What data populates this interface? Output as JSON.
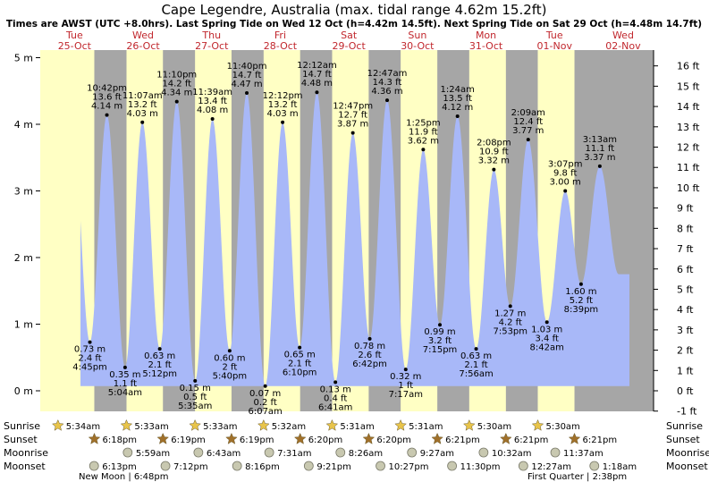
{
  "header": {
    "title": "Cape Legendre, Australia (max. tidal range 4.62m 15.2ft)",
    "subtitle": "Times are AWST (UTC +8.0hrs). Last Spring Tide on Wed 12 Oct (h=4.42m 14.5ft). Next Spring Tide on Sat 29 Oct (h=4.48m 14.7ft)"
  },
  "days": [
    {
      "name": "Tue",
      "date": "25-Oct"
    },
    {
      "name": "Wed",
      "date": "26-Oct"
    },
    {
      "name": "Thu",
      "date": "27-Oct"
    },
    {
      "name": "Fri",
      "date": "28-Oct"
    },
    {
      "name": "Sat",
      "date": "29-Oct"
    },
    {
      "name": "Sun",
      "date": "30-Oct"
    },
    {
      "name": "Mon",
      "date": "31-Oct"
    },
    {
      "name": "Tue",
      "date": "01-Nov"
    },
    {
      "name": "Wed",
      "date": "02-Nov"
    }
  ],
  "row_labels": {
    "sunrise": "Sunrise",
    "sunset": "Sunset",
    "moonrise": "Moonrise",
    "moonset": "Moonset"
  },
  "astro": {
    "sunrise": [
      "5:34am",
      "5:33am",
      "5:33am",
      "5:32am",
      "5:31am",
      "5:31am",
      "5:30am",
      "5:30am"
    ],
    "sunset": [
      "6:18pm",
      "6:19pm",
      "6:19pm",
      "6:20pm",
      "6:20pm",
      "6:21pm",
      "6:21pm",
      "6:21pm"
    ],
    "moonrise": [
      "5:59am",
      "6:43am",
      "7:31am",
      "8:26am",
      "9:27am",
      "10:32am",
      "11:37am"
    ],
    "moonset": [
      "6:13pm",
      "7:12pm",
      "8:16pm",
      "9:21pm",
      "10:27pm",
      "11:30pm",
      "12:27am",
      "1:18am"
    ]
  },
  "moon_phases": [
    "New Moon | 6:48pm",
    "First Quarter | 2:38pm"
  ],
  "colors": {
    "day": "#ffffc4",
    "night": "#a6a6a6",
    "tide": "#a8b8f8",
    "title_day": "#c1272d",
    "sun_icon": "#e8c44a",
    "sunset_icon": "#a0702a",
    "moon_icon": "#c8c8b0"
  },
  "chart_data": {
    "type": "area",
    "title": "Cape Legendre, Australia (max. tidal range 4.62m 15.2ft)",
    "x_unit": "time (AWST)",
    "y_label_left": "m",
    "y_label_right": "ft",
    "ylim_m": [
      -0.3,
      5.35
    ],
    "yticks_m": [
      "0 m",
      "1 m",
      "2 m",
      "3 m",
      "4 m",
      "5 m"
    ],
    "yticks_ft": [
      "-1 ft",
      "0 ft",
      "1 ft",
      "2 ft",
      "3 ft",
      "4 ft",
      "5 ft",
      "6 ft",
      "7 ft",
      "8 ft",
      "9 ft",
      "10 ft",
      "11 ft",
      "12 ft",
      "13 ft",
      "14 ft",
      "15 ft",
      "16 ft"
    ],
    "series": [
      {
        "points": [
          {
            "day": "Tue 25-Oct",
            "time": "4:45pm",
            "height_m": 0.73,
            "height_ft": 2.4,
            "type": "low"
          },
          {
            "day": "Tue 25-Oct",
            "time": "10:42pm",
            "height_m": 4.14,
            "height_ft": 13.6,
            "type": "high"
          },
          {
            "day": "Wed 26-Oct",
            "time": "5:04am",
            "height_m": 0.35,
            "height_ft": 1.1,
            "type": "low"
          },
          {
            "day": "Wed 26-Oct",
            "time": "11:07am",
            "height_m": 4.03,
            "height_ft": 13.2,
            "type": "high"
          },
          {
            "day": "Wed 26-Oct",
            "time": "5:12pm",
            "height_m": 0.63,
            "height_ft": 2.1,
            "type": "low"
          },
          {
            "day": "Wed 26-Oct",
            "time": "11:10pm",
            "height_m": 4.34,
            "height_ft": 14.2,
            "type": "high"
          },
          {
            "day": "Thu 27-Oct",
            "time": "5:35am",
            "height_m": 0.15,
            "height_ft": 0.5,
            "type": "low"
          },
          {
            "day": "Thu 27-Oct",
            "time": "11:39am",
            "height_m": 4.08,
            "height_ft": 13.4,
            "type": "high"
          },
          {
            "day": "Thu 27-Oct",
            "time": "5:40pm",
            "height_m": 0.6,
            "height_ft": 2.0,
            "type": "low"
          },
          {
            "day": "Thu 27-Oct",
            "time": "11:40pm",
            "height_m": 4.47,
            "height_ft": 14.7,
            "type": "high"
          },
          {
            "day": "Fri 28-Oct",
            "time": "6:07am",
            "height_m": 0.07,
            "height_ft": 0.2,
            "type": "low"
          },
          {
            "day": "Fri 28-Oct",
            "time": "12:12pm",
            "height_m": 4.03,
            "height_ft": 13.2,
            "type": "high"
          },
          {
            "day": "Fri 28-Oct",
            "time": "6:10pm",
            "height_m": 0.65,
            "height_ft": 2.1,
            "type": "low"
          },
          {
            "day": "Sat 29-Oct",
            "time": "12:12am",
            "height_m": 4.48,
            "height_ft": 14.7,
            "type": "high"
          },
          {
            "day": "Sat 29-Oct",
            "time": "6:41am",
            "height_m": 0.13,
            "height_ft": 0.4,
            "type": "low"
          },
          {
            "day": "Sat 29-Oct",
            "time": "12:47pm",
            "height_m": 3.87,
            "height_ft": 12.7,
            "type": "high"
          },
          {
            "day": "Sat 29-Oct",
            "time": "6:42pm",
            "height_m": 0.78,
            "height_ft": 2.6,
            "type": "low"
          },
          {
            "day": "Sun 30-Oct",
            "time": "12:47am",
            "height_m": 4.36,
            "height_ft": 14.3,
            "type": "high"
          },
          {
            "day": "Sun 30-Oct",
            "time": "7:17am",
            "height_m": 0.32,
            "height_ft": 1.0,
            "type": "low"
          },
          {
            "day": "Sun 30-Oct",
            "time": "1:25pm",
            "height_m": 3.62,
            "height_ft": 11.9,
            "type": "high"
          },
          {
            "day": "Sun 30-Oct",
            "time": "7:15pm",
            "height_m": 0.99,
            "height_ft": 3.2,
            "type": "low"
          },
          {
            "day": "Mon 31-Oct",
            "time": "1:24am",
            "height_m": 4.12,
            "height_ft": 13.5,
            "type": "high"
          },
          {
            "day": "Mon 31-Oct",
            "time": "7:56am",
            "height_m": 0.63,
            "height_ft": 2.1,
            "type": "low"
          },
          {
            "day": "Mon 31-Oct",
            "time": "2:08pm",
            "height_m": 3.32,
            "height_ft": 10.9,
            "type": "high"
          },
          {
            "day": "Mon 31-Oct",
            "time": "7:53pm",
            "height_m": 1.27,
            "height_ft": 4.2,
            "type": "low"
          },
          {
            "day": "Tue 01-Nov",
            "time": "2:09am",
            "height_m": 3.77,
            "height_ft": 12.4,
            "type": "high"
          },
          {
            "day": "Tue 01-Nov",
            "time": "8:42am",
            "height_m": 1.03,
            "height_ft": 3.4,
            "type": "low"
          },
          {
            "day": "Tue 01-Nov",
            "time": "3:07pm",
            "height_m": 3.0,
            "height_ft": 9.8,
            "type": "high"
          },
          {
            "day": "Tue 01-Nov",
            "time": "8:39pm",
            "height_m": 1.6,
            "height_ft": 5.2,
            "type": "low"
          },
          {
            "day": "Wed 02-Nov",
            "time": "3:13am",
            "height_m": 3.37,
            "height_ft": 11.1,
            "type": "high"
          }
        ]
      }
    ]
  }
}
